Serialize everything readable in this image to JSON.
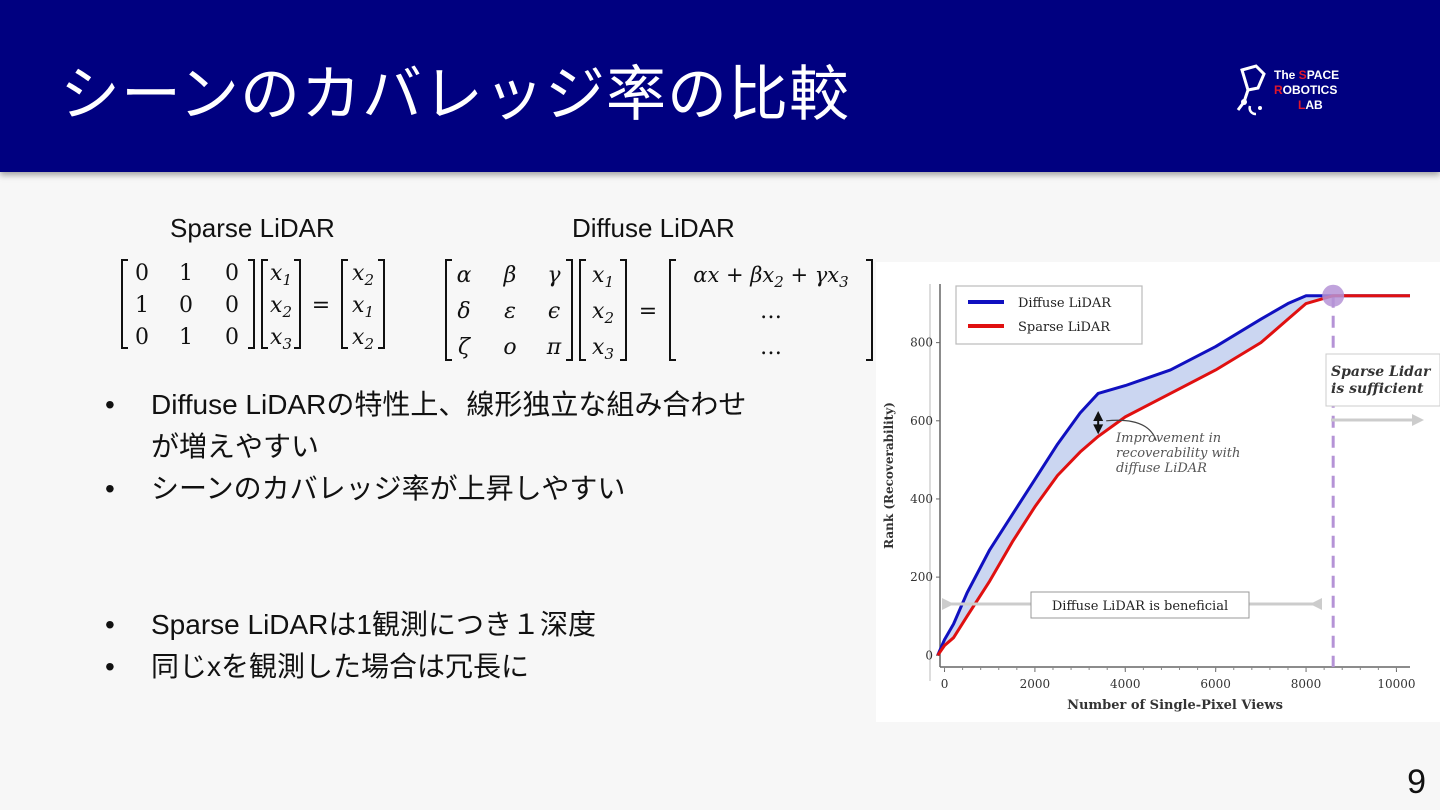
{
  "slide": {
    "title": "シーンのカバレッジ率の比較",
    "page_number": "9"
  },
  "logo": {
    "line1_a": "The ",
    "line1_b": "S",
    "line1_c": "PACE",
    "line2_a": "R",
    "line2_b": "OBOTICS",
    "line3_a": "L",
    "line3_b": "AB"
  },
  "labels": {
    "sparse": "Sparse LiDAR",
    "diffuse": "Diffuse LiDAR"
  },
  "equations": {
    "sparse": {
      "matrix": [
        [
          "0",
          "1",
          "0"
        ],
        [
          "1",
          "0",
          "0"
        ],
        [
          "0",
          "1",
          "0"
        ]
      ],
      "vector": [
        "x1",
        "x2",
        "x3"
      ],
      "result": [
        "x2",
        "x1",
        "x2"
      ]
    },
    "diffuse": {
      "matrix": [
        [
          "α",
          "β",
          "γ"
        ],
        [
          "δ",
          "ε",
          "ϵ"
        ],
        [
          "ζ",
          "ο",
          "π"
        ]
      ],
      "vector": [
        "x1",
        "x2",
        "x3"
      ],
      "result": [
        "αx + βx2 + γx3",
        "…",
        "…"
      ]
    }
  },
  "bullets_top": [
    "Diffuse LiDARの特性上、線形独立な組み合わせ",
    "が増えやすい",
    "シーンのカバレッジ率が上昇しやすい"
  ],
  "bullets_bottom": [
    "Sparse LiDARは1観測につき１深度",
    "同じxを観測した場合は冗長に"
  ],
  "colors": {
    "header": "#000080",
    "diffuse": "#1010c0",
    "sparse": "#e01010",
    "fill": "#c5d2ef",
    "marker": "#b593d6"
  },
  "chart_data": {
    "type": "line",
    "xlabel": "Number of Single-Pixel Views",
    "ylabel": "Rank (Recoverability)",
    "xlim": [
      -100,
      10300
    ],
    "ylim": [
      -30,
      950
    ],
    "x_ticks": [
      0,
      2000,
      4000,
      6000,
      8000,
      10000
    ],
    "y_ticks": [
      0,
      200,
      400,
      600,
      800
    ],
    "legend_position": "top-left",
    "series": [
      {
        "name": "Diffuse LiDAR",
        "color": "#1010c0",
        "x": [
          -150,
          0,
          200,
          500,
          1000,
          1500,
          2000,
          2500,
          3000,
          3400,
          4000,
          5000,
          6000,
          7000,
          7600,
          8000,
          8600,
          10300
        ],
        "y": [
          0,
          40,
          80,
          160,
          270,
          360,
          450,
          540,
          620,
          670,
          690,
          730,
          790,
          860,
          900,
          920,
          920,
          920
        ]
      },
      {
        "name": "Sparse LiDAR",
        "color": "#e01010",
        "x": [
          -150,
          0,
          200,
          500,
          1000,
          1500,
          2000,
          2500,
          3000,
          3400,
          4000,
          5000,
          6000,
          7000,
          7600,
          8000,
          8600,
          10300
        ],
        "y": [
          0,
          25,
          45,
          100,
          190,
          290,
          380,
          460,
          520,
          560,
          610,
          670,
          730,
          800,
          860,
          900,
          920,
          920
        ]
      }
    ],
    "annotations": {
      "improvement": [
        "Improvement in",
        "recoverability with",
        "diffuse LiDAR"
      ],
      "beneficial": "Diffuse LiDAR is beneficial",
      "sufficient": [
        "Sparse Lidar",
        "is sufficient"
      ],
      "crossover_x": 8600,
      "crossover_y": 920,
      "improvement_x": 3400
    }
  }
}
